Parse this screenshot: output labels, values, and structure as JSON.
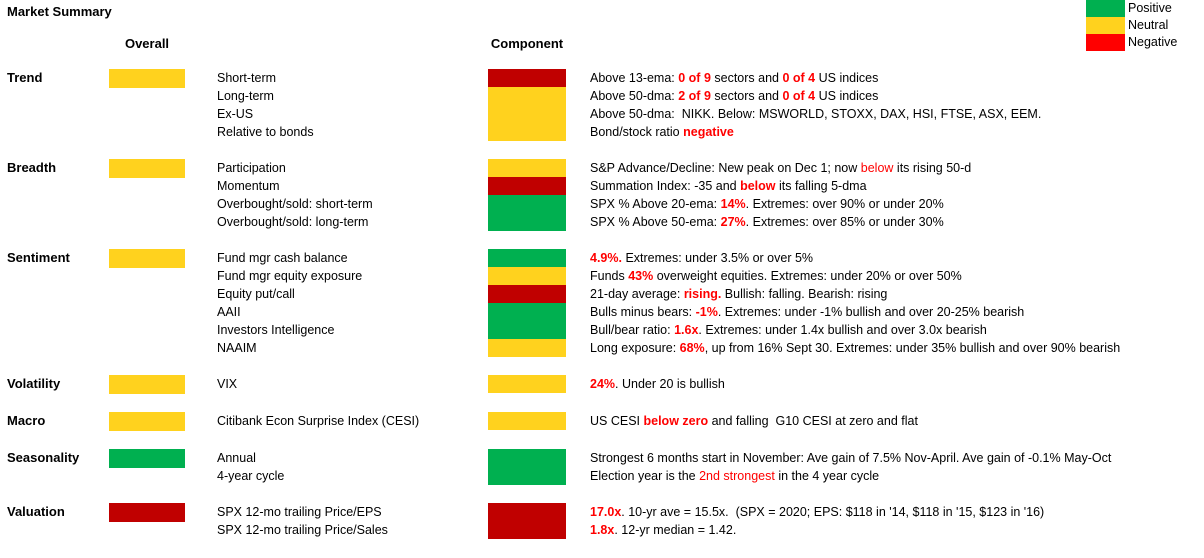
{
  "title": "Market Summary",
  "headers": {
    "overall": "Overall",
    "component": "Component"
  },
  "colors": {
    "positive": "#00B050",
    "neutral": "#FFD21E",
    "negative": "#C00000",
    "legend_negative": "#FF0000",
    "text_highlight": "#FF0000"
  },
  "legend": [
    {
      "label": "Positive",
      "color": "positive"
    },
    {
      "label": "Neutral",
      "color": "neutral"
    },
    {
      "label": "Negative",
      "color": "legend_negative"
    }
  ],
  "sections": [
    {
      "name": "Trend",
      "overall": "neutral",
      "component_blocks": [
        {
          "color": "negative",
          "rows": 1
        },
        {
          "color": "neutral",
          "rows": 3
        }
      ],
      "rows": [
        {
          "label": "Short-term",
          "desc": [
            {
              "t": "Above 13-ema: "
            },
            {
              "t": "0 of 9",
              "red": true,
              "bold": true
            },
            {
              "t": " sectors and "
            },
            {
              "t": "0 of 4",
              "red": true,
              "bold": true
            },
            {
              "t": " US indices"
            }
          ]
        },
        {
          "label": "Long-term",
          "desc": [
            {
              "t": "Above 50-dma: "
            },
            {
              "t": "2 of 9",
              "red": true,
              "bold": true
            },
            {
              "t": " sectors and "
            },
            {
              "t": "0 of 4",
              "red": true,
              "bold": true
            },
            {
              "t": " US indices"
            }
          ]
        },
        {
          "label": "Ex-US",
          "desc": [
            {
              "t": "Above 50-dma:  NIKK. Below: MSWORLD, STOXX, DAX, HSI, FTSE, ASX, EEM."
            }
          ]
        },
        {
          "label": "Relative to bonds",
          "desc": [
            {
              "t": "Bond/stock ratio "
            },
            {
              "t": "negative",
              "red": true,
              "bold": true
            }
          ]
        }
      ]
    },
    {
      "name": "Breadth",
      "overall": "neutral",
      "component_blocks": [
        {
          "color": "neutral",
          "rows": 1
        },
        {
          "color": "negative",
          "rows": 1
        },
        {
          "color": "positive",
          "rows": 2
        }
      ],
      "rows": [
        {
          "label": "Participation",
          "desc": [
            {
              "t": "S&P Advance/Decline: New peak on Dec 1; now "
            },
            {
              "t": "below",
              "red": true
            },
            {
              "t": " its rising 50-d"
            }
          ]
        },
        {
          "label": "Momentum",
          "desc": [
            {
              "t": "Summation Index: -35 and "
            },
            {
              "t": "below",
              "red": true,
              "bold": true
            },
            {
              "t": " its falling 5-dma"
            }
          ]
        },
        {
          "label": "Overbought/sold: short-term",
          "desc": [
            {
              "t": "SPX % Above 20-ema: "
            },
            {
              "t": "14%",
              "red": true,
              "bold": true
            },
            {
              "t": ". Extremes: over 90% or under 20%"
            }
          ]
        },
        {
          "label": "Overbought/sold: long-term",
          "desc": [
            {
              "t": "SPX % Above 50-ema: "
            },
            {
              "t": "27%",
              "red": true,
              "bold": true
            },
            {
              "t": ". Extremes: over 85% or under 30%"
            }
          ]
        }
      ]
    },
    {
      "name": "Sentiment",
      "overall": "neutral",
      "component_blocks": [
        {
          "color": "positive",
          "rows": 1
        },
        {
          "color": "neutral",
          "rows": 1
        },
        {
          "color": "negative",
          "rows": 1
        },
        {
          "color": "positive",
          "rows": 2
        },
        {
          "color": "neutral",
          "rows": 1
        }
      ],
      "rows": [
        {
          "label": "Fund mgr cash balance",
          "desc": [
            {
              "t": "4.9%.",
              "red": true,
              "bold": true
            },
            {
              "t": " Extremes: under 3.5% or over 5%"
            }
          ]
        },
        {
          "label": "Fund mgr equity exposure",
          "desc": [
            {
              "t": "Funds "
            },
            {
              "t": "43%",
              "red": true,
              "bold": true
            },
            {
              "t": " overweight equities. Extremes: under 20% or over 50%"
            }
          ]
        },
        {
          "label": "Equity put/call",
          "desc": [
            {
              "t": "21-day average: "
            },
            {
              "t": "rising.",
              "red": true,
              "bold": true
            },
            {
              "t": " Bullish: falling. Bearish: rising"
            }
          ]
        },
        {
          "label": "AAII",
          "desc": [
            {
              "t": "Bulls minus bears: "
            },
            {
              "t": "-1%",
              "red": true,
              "bold": true
            },
            {
              "t": ". Extremes: under -1% bullish and over 20-25% bearish"
            }
          ]
        },
        {
          "label": "Investors Intelligence",
          "desc": [
            {
              "t": "Bull/bear ratio: "
            },
            {
              "t": "1.6x",
              "red": true,
              "bold": true
            },
            {
              "t": ". Extremes: under 1.4x bullish and over 3.0x bearish"
            }
          ]
        },
        {
          "label": "NAAIM",
          "desc": [
            {
              "t": "Long exposure: "
            },
            {
              "t": "68%",
              "red": true,
              "bold": true
            },
            {
              "t": ", up from 16% Sept 30. Extremes: under 35% bullish and over 90% bearish"
            }
          ]
        }
      ]
    },
    {
      "name": "Volatility",
      "overall": "neutral",
      "component_blocks": [
        {
          "color": "neutral",
          "rows": 1
        }
      ],
      "rows": [
        {
          "label": "VIX",
          "desc": [
            {
              "t": "24%",
              "red": true,
              "bold": true
            },
            {
              "t": ". Under 20 is bullish"
            }
          ]
        }
      ]
    },
    {
      "name": "Macro",
      "overall": "neutral",
      "component_blocks": [
        {
          "color": "neutral",
          "rows": 1
        }
      ],
      "rows": [
        {
          "label": "Citibank Econ Surprise Index (CESI)",
          "desc": [
            {
              "t": "US CESI "
            },
            {
              "t": "below zero",
              "red": true,
              "bold": true
            },
            {
              "t": " and falling  G10 CESI at zero and flat"
            }
          ]
        }
      ]
    },
    {
      "name": "Seasonality",
      "overall": "positive",
      "component_blocks": [
        {
          "color": "positive",
          "rows": 2
        }
      ],
      "rows": [
        {
          "label": "Annual",
          "desc": [
            {
              "t": "Strongest 6 months start in November: Ave gain of 7.5% Nov-April. Ave gain of -0.1% May-Oct"
            }
          ]
        },
        {
          "label": "4-year cycle",
          "desc": [
            {
              "t": "Election year is the "
            },
            {
              "t": "2nd strongest",
              "red": true
            },
            {
              "t": " in the 4 year cycle"
            }
          ]
        }
      ]
    },
    {
      "name": "Valuation",
      "overall": "negative",
      "component_blocks": [
        {
          "color": "negative",
          "rows": 2
        }
      ],
      "rows": [
        {
          "label": "SPX 12-mo trailing Price/EPS",
          "desc": [
            {
              "t": "17.0x",
              "red": true,
              "bold": true
            },
            {
              "t": ". 10-yr ave = 15.5x.  (SPX = 2020; EPS: $118 in '14, $118 in '15, $123 in '16)"
            }
          ]
        },
        {
          "label": "SPX 12-mo trailing Price/Sales",
          "desc": [
            {
              "t": "1.8x",
              "red": true,
              "bold": true
            },
            {
              "t": ". 12-yr median = 1.42."
            }
          ]
        }
      ]
    }
  ]
}
